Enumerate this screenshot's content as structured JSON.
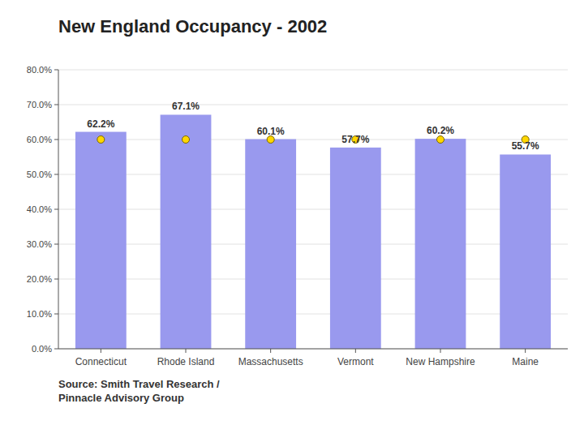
{
  "chart_data": {
    "type": "bar",
    "title": "New England Occupancy - 2002",
    "annotations": [
      "Source: Smith Travel Research /\nPinnacle Advisory Group"
    ],
    "categories": [
      "Connecticut",
      "Rhode Island",
      "Massachusetts",
      "Vermont",
      "New Hampshire",
      "Maine"
    ],
    "series": [
      {
        "type": "bar",
        "color": "#9999EE",
        "data_labels": true,
        "values": [
          0.622,
          0.671,
          0.601,
          0.577,
          0.602,
          0.557
        ],
        "value_labels": [
          "62.2%",
          "67.1%",
          "60.1%",
          "57.7%",
          "60.2%",
          "55.7%"
        ]
      },
      {
        "type": "scatter",
        "color": "#FFD700",
        "marker": "circle",
        "values": [
          0.6,
          0.6,
          0.6,
          0.6,
          0.6,
          0.6
        ]
      }
    ],
    "ylim": [
      0,
      0.8
    ],
    "yticks": [
      {
        "value": 0.0,
        "label": "0.0%"
      },
      {
        "value": 0.1,
        "label": "10.0%"
      },
      {
        "value": 0.2,
        "label": "20.0%"
      },
      {
        "value": 0.3,
        "label": "30.0%"
      },
      {
        "value": 0.4,
        "label": "40.0%"
      },
      {
        "value": 0.5,
        "label": "50.0%"
      },
      {
        "value": 0.6,
        "label": "60.0%"
      },
      {
        "value": 0.7,
        "label": "70.0%"
      },
      {
        "value": 0.8,
        "label": "80.0%"
      }
    ],
    "grid": true
  }
}
